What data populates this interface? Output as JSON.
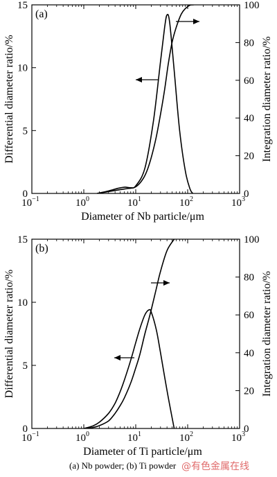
{
  "chart_data": [
    {
      "type": "line",
      "panel_label": "(a)",
      "xlabel": "Diameter of Nb particle/μm",
      "ylabel_left": "Differential diameter ratio/%",
      "ylabel_right": "Integration diameter ratio/%",
      "x_scale": "log",
      "xlim": [
        0.1,
        1000
      ],
      "x_ticks": [
        {
          "base": "10",
          "exp": "−1"
        },
        {
          "base": "10",
          "exp": "0"
        },
        {
          "base": "10",
          "exp": "1"
        },
        {
          "base": "10",
          "exp": "2"
        },
        {
          "base": "10",
          "exp": "3"
        }
      ],
      "ylim_left": [
        0,
        15
      ],
      "y_ticks_left": [
        "0",
        "5",
        "10",
        "15"
      ],
      "ylim_right": [
        0,
        100
      ],
      "y_ticks_right": [
        "0",
        "20",
        "40",
        "60",
        "80",
        "100"
      ],
      "series": [
        {
          "axis": "left",
          "x": [
            1.8,
            3,
            4.5,
            6.2,
            8,
            10,
            15,
            22,
            30,
            36,
            40,
            45,
            55,
            70,
            90,
            110,
            125
          ],
          "y": [
            0,
            0.2,
            0.4,
            0.5,
            0.45,
            0.6,
            2.0,
            5.8,
            10.5,
            13.2,
            14.2,
            13.6,
            9.8,
            5.0,
            1.8,
            0.4,
            0
          ]
        },
        {
          "axis": "right",
          "x": [
            1.8,
            3,
            5,
            7,
            10,
            14,
            18,
            24,
            30,
            36,
            42,
            50,
            60,
            75,
            90,
            110,
            130
          ],
          "y": [
            0,
            1,
            2,
            2.6,
            3.5,
            8,
            15,
            28,
            42,
            55,
            68,
            80,
            88,
            95,
            98,
            99.8,
            100
          ]
        }
      ],
      "arrows": [
        {
          "direction": "left",
          "points_to": "left axis"
        },
        {
          "direction": "right",
          "points_to": "right axis"
        }
      ]
    },
    {
      "type": "line",
      "panel_label": "(b)",
      "xlabel": "Diameter  of Ti particle/μm",
      "ylabel_left": "Differential diameter ratio/%",
      "ylabel_right": "Integration diameter ratio/%",
      "x_scale": "log",
      "xlim": [
        0.1,
        1000
      ],
      "x_ticks": [
        {
          "base": "10",
          "exp": "−1"
        },
        {
          "base": "10",
          "exp": "0"
        },
        {
          "base": "10",
          "exp": "1"
        },
        {
          "base": "10",
          "exp": "2"
        },
        {
          "base": "10",
          "exp": "3"
        }
      ],
      "ylim_left": [
        0,
        15
      ],
      "y_ticks_left": [
        "0",
        "5",
        "10",
        "15"
      ],
      "ylim_right": [
        0,
        100
      ],
      "y_ticks_right": [
        "0",
        "20",
        "40",
        "60",
        "80",
        "100"
      ],
      "series": [
        {
          "axis": "left",
          "x": [
            1.0,
            1.5,
            2,
            3,
            4,
            5,
            6,
            8,
            10,
            12,
            15,
            18,
            20,
            25,
            30,
            40,
            55
          ],
          "y": [
            0,
            0.2,
            0.5,
            1.2,
            2.0,
            2.9,
            3.8,
            5.4,
            6.8,
            7.9,
            9.0,
            9.4,
            9.2,
            7.8,
            6.0,
            3.0,
            0
          ]
        },
        {
          "axis": "right",
          "x": [
            1.0,
            1.5,
            2,
            3,
            4,
            5,
            6,
            8,
            10,
            12,
            15,
            18,
            20,
            25,
            30,
            40,
            55
          ],
          "y": [
            0,
            0.5,
            1.5,
            4,
            8,
            12,
            16,
            24,
            32,
            39,
            50,
            58,
            63,
            74,
            83,
            94,
            100
          ]
        }
      ],
      "arrows": [
        {
          "direction": "left",
          "points_to": "left axis"
        },
        {
          "direction": "right",
          "points_to": "right axis"
        }
      ]
    }
  ],
  "caption": "(a) Nb powder; (b) Ti powder",
  "watermark": "@有色金属在线"
}
